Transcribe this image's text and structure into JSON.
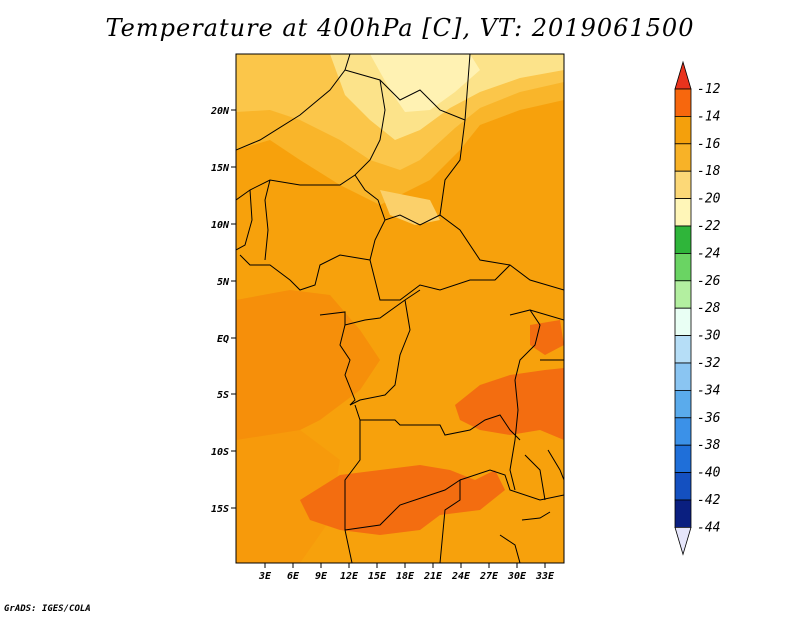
{
  "title": "Temperature at 400hPa [C], VT: 2019061500",
  "credit": "GrADS: IGES/COLA",
  "map": {
    "lat_ticks": [
      "20N",
      "15N",
      "10N",
      "5N",
      "EQ",
      "5S",
      "10S",
      "15S"
    ],
    "lon_ticks": [
      "3E",
      "6E",
      "9E",
      "12E",
      "15E",
      "18E",
      "21E",
      "24E",
      "27E",
      "30E",
      "33E"
    ]
  },
  "colorbar": {
    "labels": [
      "-12",
      "-14",
      "-16",
      "-18",
      "-20",
      "-22",
      "-24",
      "-26",
      "-28",
      "-30",
      "-32",
      "-34",
      "-36",
      "-38",
      "-40",
      "-42",
      "-44"
    ],
    "colors": [
      "#e9331d",
      "#f7670d",
      "#f4a00c",
      "#f8b227",
      "#fcd877",
      "#fff6b8",
      "#2fb53a",
      "#6ad463",
      "#b3efa0",
      "#e9fff4",
      "#b6def7",
      "#8ac5f2",
      "#5aabec",
      "#3b91e8",
      "#1f6fd9",
      "#1450c0",
      "#0a1f80",
      "#e6e6fb"
    ]
  }
}
